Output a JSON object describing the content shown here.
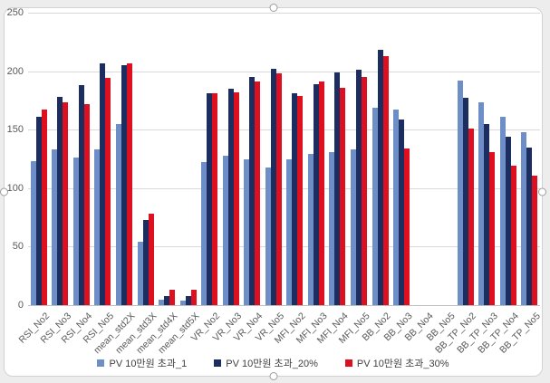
{
  "chart_data": {
    "type": "bar",
    "title": "",
    "xlabel": "",
    "ylabel": "",
    "ylim": [
      0,
      250
    ],
    "yticks": [
      0,
      50,
      100,
      150,
      200,
      250
    ],
    "grid": true,
    "legend_position": "bottom",
    "categories": [
      "RSI_No2",
      "RSI_No3",
      "RSI_No4",
      "RSI_No5",
      "mean_std2X",
      "mean_std3X",
      "mean_std4X",
      "mean_std5X",
      "VR_No2",
      "VR_No3",
      "VR_No4",
      "VR_No5",
      "MFI_No2",
      "MFI_No3",
      "MFI_No4",
      "MFI_No5",
      "BB_No2",
      "BB_No3",
      "BB_No4",
      "BB_No5",
      "BB_TP_No2",
      "BB_TP_No3",
      "BB_TP_No4",
      "BB_TP_No5"
    ],
    "series": [
      {
        "name": "PV 10만원 초과_1",
        "color": "#6e8ec8",
        "values": [
          123,
          133,
          126,
          133,
          155,
          54,
          5,
          4,
          122,
          128,
          125,
          118,
          125,
          129,
          131,
          133,
          169,
          167,
          0,
          0,
          192,
          173,
          161,
          148
        ]
      },
      {
        "name": "PV 10만원 초과_20%",
        "color": "#1c2e5f",
        "values": [
          161,
          178,
          188,
          207,
          205,
          73,
          8,
          8,
          181,
          185,
          195,
          202,
          181,
          189,
          199,
          201,
          218,
          159,
          0,
          0,
          177,
          155,
          144,
          135
        ]
      },
      {
        "name": "PV 10만원 초과_30%",
        "color": "#de1020",
        "values": [
          167,
          173,
          172,
          194,
          207,
          78,
          13,
          13,
          181,
          182,
          191,
          198,
          179,
          191,
          186,
          195,
          213,
          134,
          0,
          0,
          151,
          131,
          119,
          111
        ]
      }
    ]
  },
  "colors": {
    "gridline": "#d9d9d9",
    "axis_line": "#bfbfbf",
    "tick_label": "#595959",
    "frame_border": "#d2d2d2",
    "background": "#ededed"
  }
}
